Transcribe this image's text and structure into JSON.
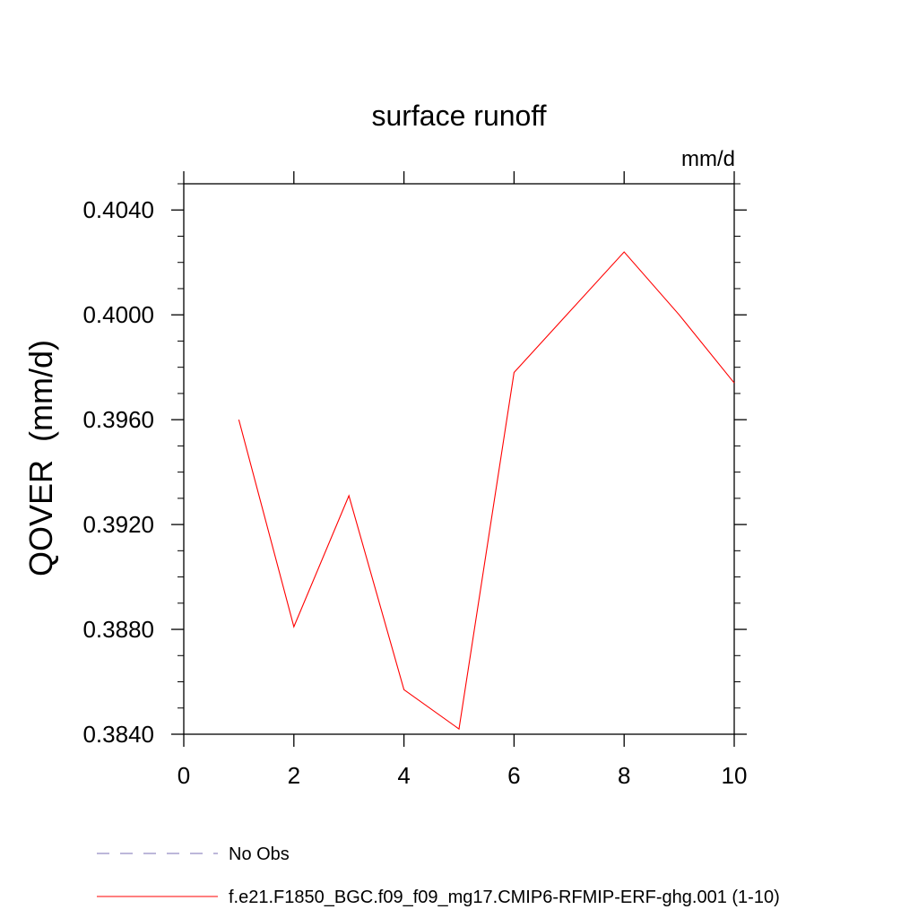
{
  "chart_data": {
    "type": "line",
    "title": "surface runoff",
    "units_label": "mm/d",
    "ylabel": "QOVER  (mm/d)",
    "xlabel": "",
    "xlim": [
      0,
      10
    ],
    "ylim": [
      0.384,
      0.405
    ],
    "x_ticks": [
      0,
      2,
      4,
      6,
      8,
      10
    ],
    "x_tick_labels": [
      "0",
      "2",
      "4",
      "6",
      "8",
      "10"
    ],
    "y_ticks": [
      0.384,
      0.388,
      0.392,
      0.396,
      0.4,
      0.404
    ],
    "y_tick_labels": [
      "0.3840",
      "0.3880",
      "0.3920",
      "0.3960",
      "0.4000",
      "0.4040"
    ],
    "grid": false,
    "legend_position": "bottom",
    "series": [
      {
        "name": "f.e21.F1850_BGC.f09_f09_mg17.CMIP6-RFMIP-ERF-ghg.001 (1-10)",
        "color": "#ff0000",
        "dash": "solid",
        "x": [
          1,
          2,
          3,
          4,
          5,
          6,
          7,
          8,
          9,
          10
        ],
        "y": [
          0.396,
          0.3881,
          0.3931,
          0.3857,
          0.3842,
          0.3978,
          0.4001,
          0.4024,
          0.4,
          0.3974
        ]
      }
    ],
    "legend": [
      {
        "label": "No Obs",
        "color": "#7b6fb5",
        "dash": "dashed"
      },
      {
        "label": "f.e21.F1850_BGC.f09_f09_mg17.CMIP6-RFMIP-ERF-ghg.001 (1-10)",
        "color": "#ff0000",
        "dash": "solid"
      }
    ]
  }
}
